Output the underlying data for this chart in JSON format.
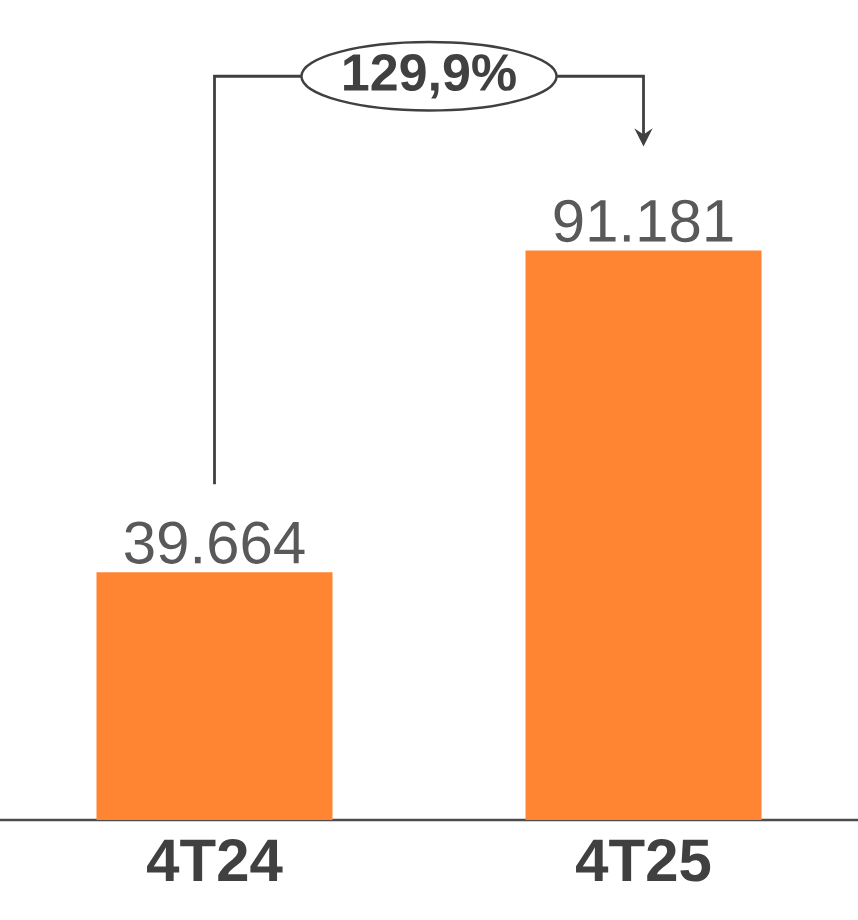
{
  "chart_data": {
    "type": "bar",
    "categories": [
      "4T24",
      "4T25"
    ],
    "values": [
      39664,
      91181
    ],
    "value_labels": [
      "39.664",
      "91.181"
    ],
    "color": "#ff8533",
    "annotations": [
      "129,9%"
    ]
  }
}
